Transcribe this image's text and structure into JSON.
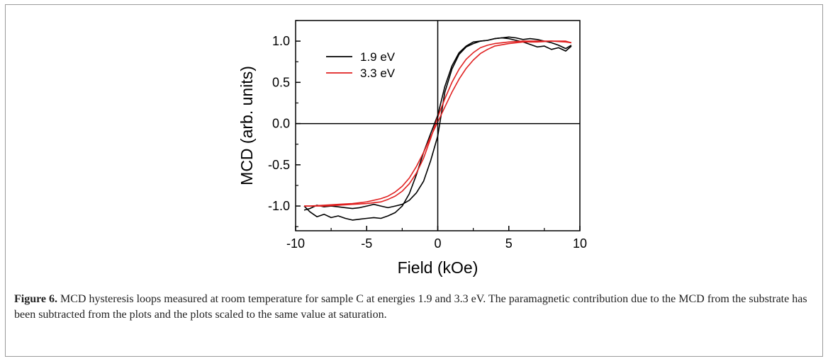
{
  "figure": {
    "label": "Figure 6.",
    "caption": "MCD hysteresis loops measured at room temperature for sample C at energies 1.9 and 3.3 eV. The paramagnetic contribution due to the MCD from the substrate has been subtracted from the plots and the plots scaled to the same value at saturation."
  },
  "chart_data": {
    "type": "line",
    "title": "",
    "xlabel": "Field (kOe)",
    "ylabel": "MCD (arb. units)",
    "xlim": [
      -10,
      10
    ],
    "ylim": [
      -1.3,
      1.25
    ],
    "xticks": [
      -10,
      -5,
      0,
      5,
      10
    ],
    "yticks": [
      -1.0,
      -0.5,
      0.0,
      0.5,
      1.0
    ],
    "xtick_labels": [
      "-10",
      "-5",
      "0",
      "5",
      "10"
    ],
    "ytick_labels": [
      "-1.0",
      "-0.5",
      "0.0",
      "0.5",
      "1.0"
    ],
    "grid": false,
    "zero_lines": true,
    "legend_position": "top-left",
    "series": [
      {
        "name": "1.9 eV",
        "color": "#000000",
        "branches": [
          {
            "x": [
              -9.4,
              -9.0,
              -8.5,
              -8.0,
              -7.5,
              -7.0,
              -6.5,
              -6.0,
              -5.5,
              -5.0,
              -4.5,
              -4.0,
              -3.5,
              -3.0,
              -2.5,
              -2.0,
              -1.5,
              -1.0,
              -0.5,
              0.0,
              0.5,
              1.0,
              1.5,
              2.0,
              2.5,
              3.0,
              3.5,
              4.0,
              4.5,
              5.0,
              5.5,
              6.0,
              6.5,
              7.0,
              7.5,
              8.0,
              8.5,
              9.0,
              9.4
            ],
            "y": [
              -1.0,
              -1.07,
              -1.13,
              -1.1,
              -1.14,
              -1.12,
              -1.15,
              -1.17,
              -1.16,
              -1.15,
              -1.14,
              -1.15,
              -1.12,
              -1.08,
              -1.0,
              -0.85,
              -0.62,
              -0.35,
              -0.12,
              0.1,
              0.45,
              0.7,
              0.86,
              0.94,
              0.99,
              1.0,
              1.01,
              1.03,
              1.04,
              1.03,
              1.01,
              0.99,
              0.96,
              0.93,
              0.94,
              0.9,
              0.92,
              0.88,
              0.94
            ]
          },
          {
            "x": [
              9.4,
              9.0,
              8.5,
              8.0,
              7.5,
              7.0,
              6.5,
              6.0,
              5.5,
              5.0,
              4.5,
              4.0,
              3.5,
              3.0,
              2.5,
              2.0,
              1.5,
              1.0,
              0.5,
              0.0,
              -0.5,
              -1.0,
              -1.5,
              -2.0,
              -2.5,
              -3.0,
              -3.5,
              -4.0,
              -4.5,
              -5.0,
              -5.5,
              -6.0,
              -6.5,
              -7.0,
              -7.5,
              -8.0,
              -8.5,
              -9.0,
              -9.4
            ],
            "y": [
              0.95,
              0.91,
              0.95,
              0.98,
              1.0,
              1.02,
              1.03,
              1.02,
              1.04,
              1.05,
              1.04,
              1.03,
              1.01,
              1.0,
              0.97,
              0.93,
              0.84,
              0.66,
              0.38,
              -0.15,
              -0.45,
              -0.7,
              -0.84,
              -0.93,
              -0.98,
              -1.0,
              -1.02,
              -1.0,
              -0.98,
              -1.0,
              -1.02,
              -1.03,
              -1.02,
              -1.01,
              -1.0,
              -1.01,
              -0.99,
              -1.03,
              -1.05
            ]
          }
        ]
      },
      {
        "name": "3.3 eV",
        "color": "#e02020",
        "branches": [
          {
            "x": [
              -9.4,
              -9.0,
              -8.0,
              -7.0,
              -6.0,
              -5.0,
              -4.0,
              -3.5,
              -3.0,
              -2.5,
              -2.0,
              -1.5,
              -1.0,
              -0.5,
              0.0,
              0.5,
              1.0,
              1.5,
              2.0,
              2.5,
              3.0,
              3.5,
              4.0,
              5.0,
              6.0,
              7.0,
              8.0,
              9.0,
              9.4
            ],
            "y": [
              -1.0,
              -1.0,
              -0.99,
              -0.98,
              -0.97,
              -0.95,
              -0.91,
              -0.88,
              -0.83,
              -0.76,
              -0.66,
              -0.52,
              -0.35,
              -0.16,
              0.02,
              0.2,
              0.38,
              0.54,
              0.67,
              0.77,
              0.85,
              0.9,
              0.94,
              0.97,
              0.99,
              0.99,
              1.0,
              1.0,
              0.98
            ]
          },
          {
            "x": [
              9.4,
              9.0,
              8.0,
              7.0,
              6.0,
              5.0,
              4.0,
              3.5,
              3.0,
              2.5,
              2.0,
              1.5,
              1.0,
              0.5,
              0.0,
              -0.5,
              -1.0,
              -1.5,
              -2.0,
              -2.5,
              -3.0,
              -3.5,
              -4.0,
              -5.0,
              -6.0,
              -7.0,
              -8.0,
              -9.0,
              -9.4
            ],
            "y": [
              0.98,
              0.99,
              1.0,
              1.0,
              1.0,
              0.99,
              0.97,
              0.95,
              0.92,
              0.86,
              0.78,
              0.66,
              0.5,
              0.3,
              0.08,
              -0.18,
              -0.42,
              -0.6,
              -0.73,
              -0.82,
              -0.88,
              -0.92,
              -0.95,
              -0.97,
              -0.98,
              -0.99,
              -1.0,
              -1.0,
              -1.0
            ]
          }
        ]
      }
    ]
  }
}
